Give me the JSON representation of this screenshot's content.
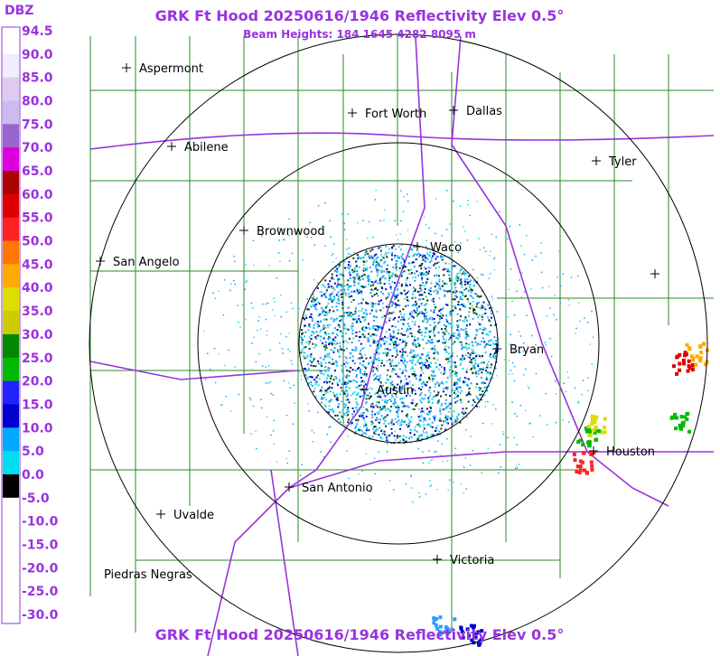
{
  "header": {
    "title": "GRK Ft Hood 20250616/1946 Reflectivity Elev 0.5°",
    "subtitle": "Beam Heights: 184 1645 4282 8095 m",
    "footer": "GRK Ft Hood 20250616/1946 Reflectivity Elev 0.5°"
  },
  "legend": {
    "title": "DBZ",
    "labels": [
      "94.5",
      "90.0",
      "85.0",
      "80.0",
      "75.0",
      "70.0",
      "65.0",
      "60.0",
      "55.0",
      "50.0",
      "45.0",
      "40.0",
      "35.0",
      "30.0",
      "25.0",
      "20.0",
      "15.0",
      "10.0",
      "5.0",
      "0.0",
      "-5.0",
      "-10.0",
      "-15.0",
      "-20.0",
      "-25.0",
      "-30.0"
    ]
  },
  "cities": [
    {
      "name": "Aspermont"
    },
    {
      "name": "Fort Worth"
    },
    {
      "name": "Dallas"
    },
    {
      "name": "Abilene"
    },
    {
      "name": "Tyler"
    },
    {
      "name": "Brownwood"
    },
    {
      "name": "Waco"
    },
    {
      "name": "San Angelo"
    },
    {
      "name": "Bryan"
    },
    {
      "name": "Austin"
    },
    {
      "name": "Houston"
    },
    {
      "name": "San Antonio"
    },
    {
      "name": "Uvalde"
    },
    {
      "name": "Victoria"
    },
    {
      "name": "Piedras Negras"
    }
  ]
}
